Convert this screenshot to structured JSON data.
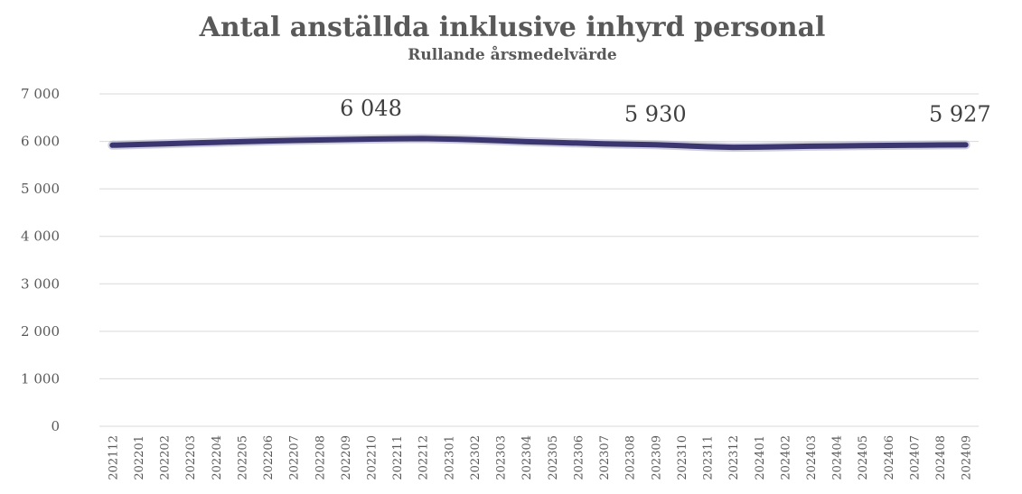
{
  "chart_data": {
    "type": "line",
    "title": "Antal anställda inklusive inhyrd personal",
    "subtitle": "Rullande årsmedelvärde",
    "xlabel": "",
    "ylabel": "",
    "ylim": [
      0,
      7000
    ],
    "yticks": [
      0,
      1000,
      2000,
      3000,
      4000,
      5000,
      6000,
      7000
    ],
    "ytick_labels": [
      "0",
      "1 000",
      "2 000",
      "3 000",
      "4 000",
      "5 000",
      "6 000",
      "7 000"
    ],
    "grid": true,
    "legend": "none",
    "line_color": "#3b3670",
    "x": [
      "202112",
      "202201",
      "202202",
      "202203",
      "202204",
      "202205",
      "202206",
      "202207",
      "202208",
      "202209",
      "202210",
      "202211",
      "202212",
      "202301",
      "202302",
      "202303",
      "202304",
      "202305",
      "202306",
      "202307",
      "202308",
      "202309",
      "202310",
      "202311",
      "202312",
      "202401",
      "202402",
      "202403",
      "202404",
      "202405",
      "202406",
      "202407",
      "202408",
      "202409"
    ],
    "series": [
      {
        "values": [
          5920,
          5935,
          5950,
          5965,
          5980,
          5995,
          6008,
          6020,
          6030,
          6040,
          6048,
          6055,
          6060,
          6050,
          6035,
          6015,
          5995,
          5980,
          5965,
          5950,
          5940,
          5930,
          5910,
          5890,
          5875,
          5880,
          5890,
          5900,
          5905,
          5910,
          5915,
          5920,
          5925,
          5927
        ]
      }
    ],
    "data_labels": [
      {
        "index": 10,
        "text": "6 048"
      },
      {
        "index": 21,
        "text": "5 930"
      },
      {
        "index": 33,
        "text": "5 927"
      }
    ]
  }
}
